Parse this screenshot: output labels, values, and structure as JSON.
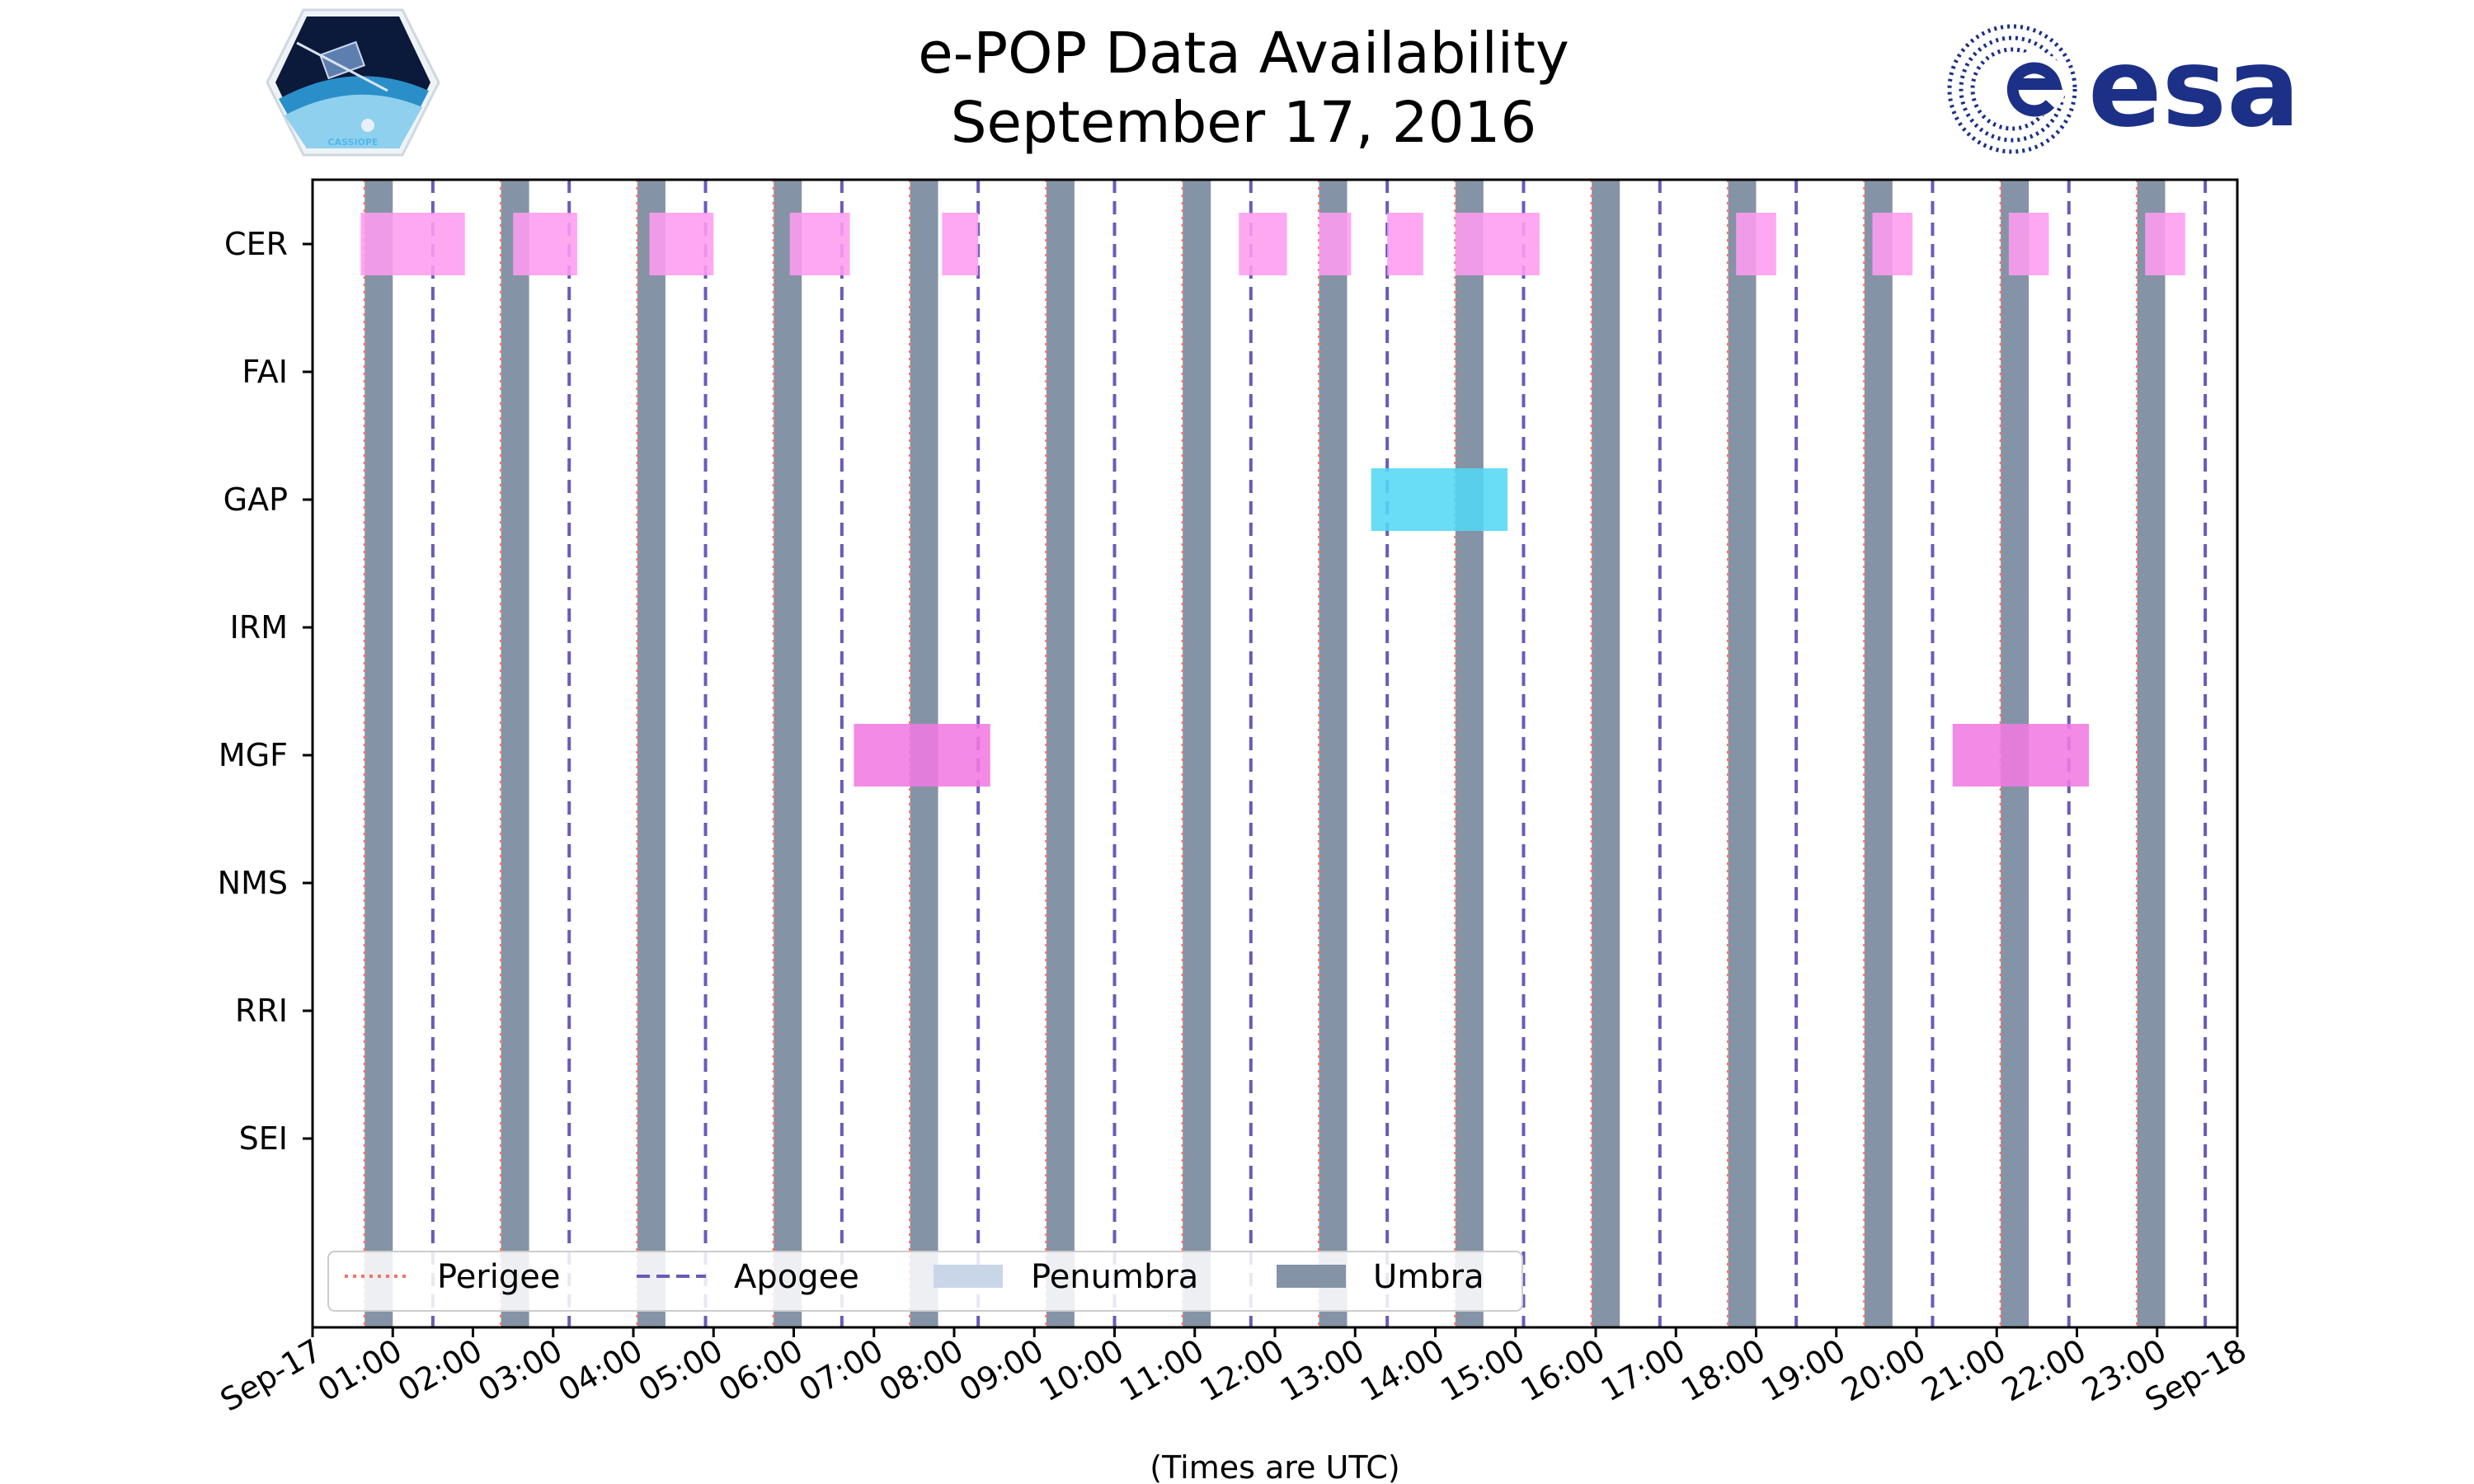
{
  "chart_data": {
    "type": "timeline",
    "title": [
      "e-POP Data Availability",
      "September 17, 2016"
    ],
    "xlabel": "(Times are UTC)",
    "xlim": [
      0,
      24
    ],
    "x_tick_labels": [
      "Sep-17",
      "01:00",
      "02:00",
      "03:00",
      "04:00",
      "05:00",
      "06:00",
      "07:00",
      "08:00",
      "09:00",
      "10:00",
      "11:00",
      "12:00",
      "13:00",
      "14:00",
      "15:00",
      "16:00",
      "17:00",
      "18:00",
      "19:00",
      "20:00",
      "21:00",
      "22:00",
      "23:00",
      "Sep-18"
    ],
    "instruments": [
      "CER",
      "FAI",
      "GAP",
      "IRM",
      "MGF",
      "NMS",
      "RRI",
      "SEI"
    ],
    "availability": [
      {
        "instrument": "CER",
        "color": "#ff9cf0",
        "intervals": [
          [
            0.6,
            1.9
          ],
          [
            2.5,
            3.3
          ],
          [
            4.2,
            5.0
          ],
          [
            5.95,
            6.7
          ],
          [
            7.85,
            8.3
          ],
          [
            11.55,
            12.15
          ],
          [
            12.55,
            12.95
          ],
          [
            13.4,
            13.85
          ],
          [
            14.25,
            15.3
          ],
          [
            17.75,
            18.25
          ],
          [
            19.45,
            19.95
          ],
          [
            21.15,
            21.65
          ],
          [
            22.85,
            23.35
          ]
        ]
      },
      {
        "instrument": "GAP",
        "color": "#54d7f5",
        "intervals": [
          [
            13.2,
            14.9
          ]
        ]
      },
      {
        "instrument": "MGF",
        "color": "#f07ae3",
        "intervals": [
          [
            6.75,
            8.45
          ],
          [
            20.45,
            22.15
          ]
        ]
      }
    ],
    "umbra_intervals": [
      [
        0.65,
        1.0
      ],
      [
        2.35,
        2.7
      ],
      [
        4.05,
        4.4
      ],
      [
        5.75,
        6.1
      ],
      [
        7.45,
        7.8
      ],
      [
        9.15,
        9.5
      ],
      [
        10.85,
        11.2
      ],
      [
        12.55,
        12.9
      ],
      [
        14.25,
        14.6
      ],
      [
        15.95,
        16.3
      ],
      [
        17.65,
        18.0
      ],
      [
        19.35,
        19.7
      ],
      [
        21.05,
        21.4
      ],
      [
        22.75,
        23.1
      ]
    ],
    "perigee_times": [
      0.65,
      2.35,
      4.05,
      5.75,
      7.45,
      9.15,
      10.85,
      12.55,
      14.25,
      15.95,
      17.65,
      19.35,
      21.05,
      22.75
    ],
    "apogee_times": [
      1.5,
      3.2,
      4.9,
      6.6,
      8.3,
      10.0,
      11.7,
      13.4,
      15.1,
      16.8,
      18.5,
      20.2,
      21.9,
      23.6
    ],
    "legend": {
      "position": "lower-left",
      "entries": [
        {
          "label": "Perigee",
          "style": "dotted",
          "color": "#f4736a"
        },
        {
          "label": "Apogee",
          "style": "dashed",
          "color": "#6a5bba"
        },
        {
          "label": "Penumbra",
          "style": "patch",
          "color": "#c8d6e8"
        },
        {
          "label": "Umbra",
          "style": "patch",
          "color": "#8494a6"
        }
      ]
    }
  },
  "logos": {
    "left": {
      "name": "CASSIOPE mission patch",
      "text": "CASSIOPE"
    },
    "right": {
      "name": "esa logo",
      "text": "esa",
      "color": "#1c3087"
    }
  }
}
